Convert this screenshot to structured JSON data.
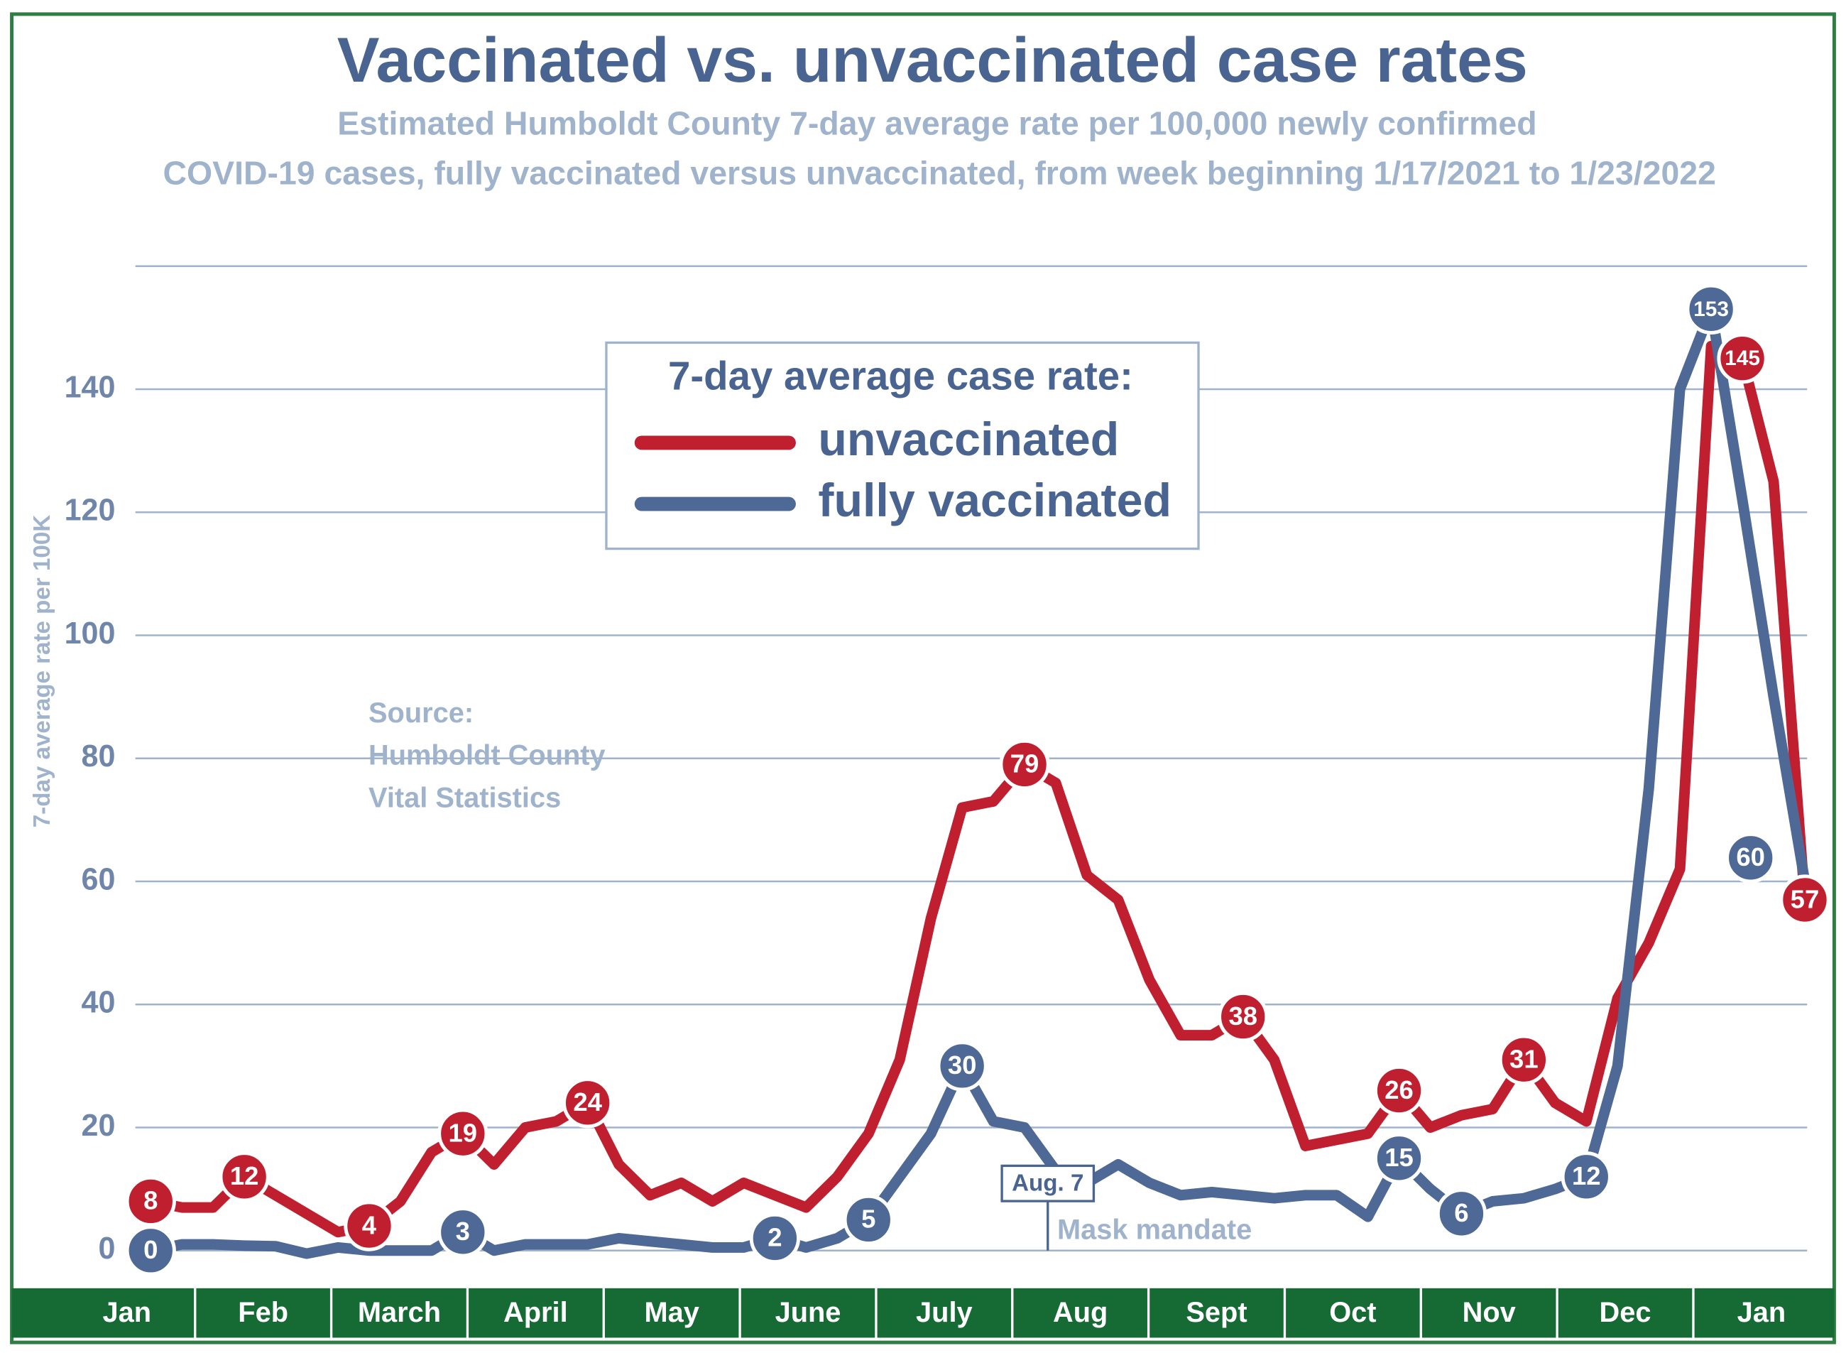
{
  "chart_data": {
    "type": "line",
    "title": "Vaccinated vs. unvaccinated case rates",
    "subtitle": [
      "Estimated Humboldt County 7-day average rate per 100,000 newly confirmed",
      "COVID-19 cases,  fully vaccinated versus unvaccinated, from week beginning 1/17/2021 to 1/23/2022"
    ],
    "y_label": "7-day average rate per 100K",
    "x_labels": [
      "Jan",
      "Feb",
      "March",
      "April",
      "May",
      "June",
      "July",
      "Aug",
      "Sept",
      "Oct",
      "Nov",
      "Dec",
      "Jan"
    ],
    "ylim": [
      0,
      160
    ],
    "yticks": [
      0,
      20,
      40,
      60,
      80,
      100,
      120,
      140
    ],
    "grid": true,
    "legend_title": "7-day average case rate:",
    "series": [
      {
        "name": "unvaccinated",
        "color": "#c01f2f",
        "values": [
          8,
          7,
          7,
          12,
          9,
          6,
          3,
          4,
          8,
          16,
          19,
          14,
          20,
          21,
          24,
          14,
          9,
          11,
          8,
          11,
          9,
          7,
          12,
          19,
          31,
          54,
          72,
          73,
          79,
          76,
          61,
          57,
          44,
          35,
          35,
          38,
          31,
          17,
          18,
          19,
          26,
          20,
          22,
          23,
          31,
          24,
          21,
          41,
          50,
          62,
          147,
          145,
          125,
          57
        ],
        "value_labels": [
          "8",
          null,
          null,
          "12",
          null,
          null,
          null,
          "4",
          null,
          null,
          "19",
          null,
          null,
          null,
          "24",
          null,
          null,
          null,
          null,
          null,
          null,
          null,
          null,
          null,
          null,
          null,
          null,
          null,
          "79",
          null,
          null,
          null,
          null,
          null,
          null,
          "38",
          null,
          null,
          null,
          null,
          "26",
          null,
          null,
          null,
          "31",
          null,
          null,
          null,
          null,
          null,
          null,
          "145",
          null,
          "57"
        ]
      },
      {
        "name": "fully vaccinated",
        "color": "#4e6996",
        "values": [
          0,
          1,
          1,
          0.8,
          0.7,
          -0.5,
          0.5,
          0,
          0,
          0,
          3,
          0,
          1,
          1,
          1,
          2,
          1.5,
          1,
          0.5,
          0.5,
          2,
          0.5,
          2,
          5,
          12,
          19,
          30,
          21,
          20,
          13,
          11,
          14,
          11,
          9,
          9.5,
          9,
          8.5,
          9,
          9,
          5.5,
          15,
          10,
          6,
          8,
          8.5,
          10,
          12,
          30,
          75,
          140,
          153,
          122,
          90,
          60
        ],
        "value_labels": [
          "0",
          null,
          null,
          null,
          null,
          null,
          null,
          null,
          null,
          null,
          "3",
          null,
          null,
          null,
          null,
          null,
          null,
          null,
          null,
          null,
          "2",
          null,
          null,
          "5",
          null,
          null,
          "30",
          null,
          null,
          null,
          null,
          null,
          null,
          null,
          null,
          null,
          null,
          null,
          null,
          null,
          "15",
          null,
          "6",
          null,
          null,
          null,
          "12",
          null,
          null,
          null,
          "153",
          null,
          null,
          "60"
        ]
      }
    ],
    "annotations": {
      "source": [
        "Source:",
        "Humboldt County",
        "Vital Statistics"
      ],
      "event": "Aug. 7",
      "event_note": "Mask mandate"
    }
  }
}
